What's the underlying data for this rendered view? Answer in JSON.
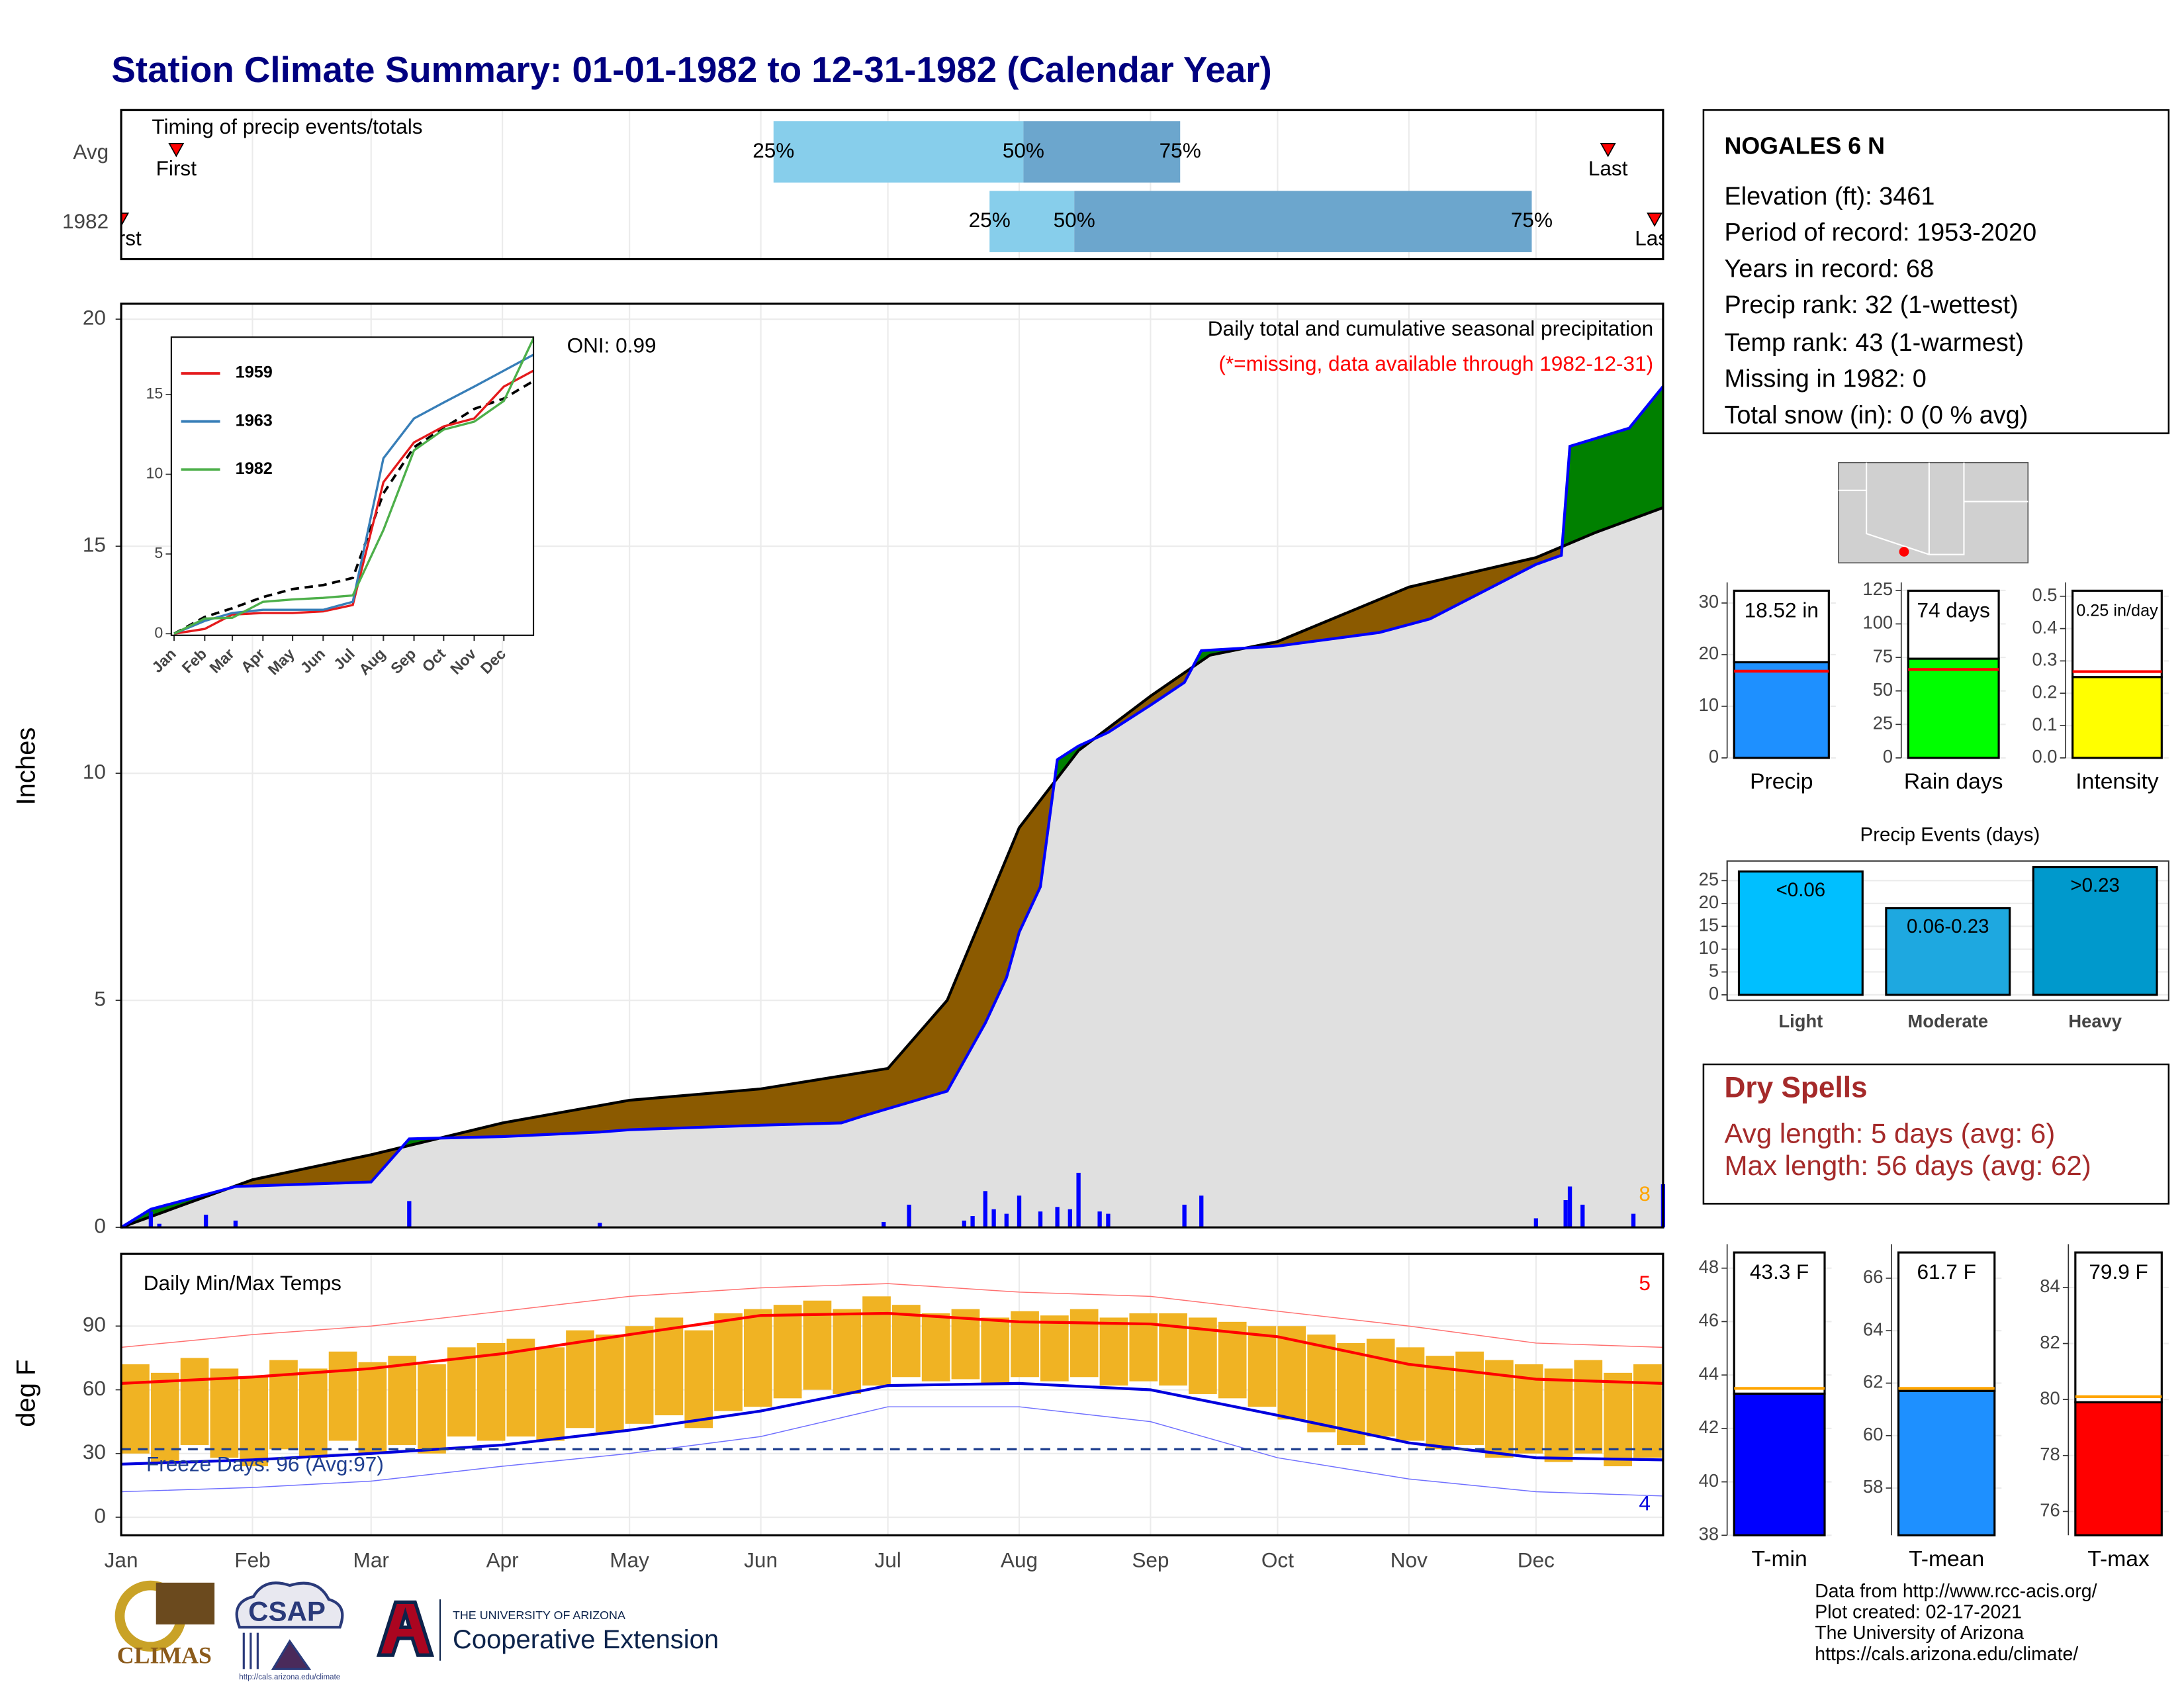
{
  "title": "Station Climate Summary: 01-01-1982 to 12-31-1982 (Calendar Year)",
  "chart_data": [
    {
      "type": "timing",
      "label": "Timing of precip events/totals",
      "categories": [
        "Avg",
        "1982"
      ],
      "first_label": "First",
      "last_label": "Last",
      "percent_labels": [
        "25%",
        "50%",
        "75%"
      ],
      "first": [
        14,
        1
      ],
      "p25": [
        155,
        206
      ],
      "p50": [
        214,
        226
      ],
      "p75": [
        251,
        334
      ],
      "last": [
        352,
        363
      ],
      "xlim": [
        1,
        365
      ],
      "colors": [
        "#87ceeb",
        "#6ca6cd"
      ],
      "marker_color": "#ff0000"
    },
    {
      "type": "cumulative",
      "title": "Daily total and cumulative seasonal precipitation",
      "subtitle": "(*=missing, data available through 1982-12-31)",
      "annotation": "ONI: 0.99",
      "ylabel": "Inches",
      "count_label": "8",
      "xlim": [
        1,
        365
      ],
      "ylim": [
        0,
        20.34
      ],
      "yticks": [
        0,
        5,
        10,
        15,
        20
      ],
      "above_color": "#008000",
      "below_color": "#8b5a00",
      "base_color": "#e0e0e0",
      "series": [
        {
          "color": "#0000ff",
          "x": [
            1,
            8,
            10,
            28,
            60,
            69,
            91,
            114,
            121,
            152,
            171,
            176,
            196,
            205,
            210,
            213,
            218,
            222,
            227,
            234,
            244,
            252,
            256,
            274,
            298,
            310,
            335,
            341,
            343,
            357,
            365
          ],
          "values": [
            0,
            0.4,
            0.45,
            0.9,
            1.0,
            1.95,
            2.0,
            2.1,
            2.15,
            2.25,
            2.3,
            2.45,
            3.0,
            4.5,
            5.5,
            6.5,
            7.5,
            10.3,
            10.6,
            10.9,
            11.5,
            12.0,
            12.7,
            12.8,
            13.1,
            13.4,
            14.6,
            14.8,
            17.2,
            17.6,
            18.52
          ]
        },
        {
          "color": "#000000",
          "x": [
            1,
            32,
            60,
            91,
            121,
            152,
            182,
            196,
            213,
            227,
            244,
            258,
            274,
            305,
            335,
            349,
            365
          ],
          "values": [
            0,
            1.05,
            1.6,
            2.3,
            2.8,
            3.05,
            3.5,
            5.0,
            8.8,
            10.5,
            11.7,
            12.6,
            12.9,
            14.1,
            14.75,
            15.3,
            15.85
          ]
        }
      ],
      "daily": {
        "color": "#0000ff",
        "x": [
          8,
          10,
          21,
          28,
          69,
          114,
          181,
          187,
          200,
          202,
          205,
          207,
          210,
          213,
          218,
          222,
          225,
          227,
          232,
          234,
          252,
          256,
          335,
          342,
          343,
          346,
          358,
          365
        ],
        "values": [
          0.35,
          0.08,
          0.28,
          0.15,
          0.58,
          0.1,
          0.12,
          0.5,
          0.15,
          0.25,
          0.8,
          0.4,
          0.3,
          0.7,
          0.35,
          0.45,
          0.4,
          1.2,
          0.35,
          0.3,
          0.5,
          0.7,
          0.2,
          0.6,
          0.9,
          0.5,
          0.3,
          0.95
        ]
      }
    },
    {
      "type": "line",
      "xlim": [
        1,
        365
      ],
      "ylim": [
        -0.1,
        18.6
      ],
      "yticks": [
        0,
        5,
        10,
        15
      ],
      "xticks": [
        {
          "value": 1,
          "label": "Jan"
        },
        {
          "value": 32,
          "label": "Feb"
        },
        {
          "value": 60,
          "label": "Mar"
        },
        {
          "value": 91,
          "label": "Apr"
        },
        {
          "value": 121,
          "label": "May"
        },
        {
          "value": 152,
          "label": "Jun"
        },
        {
          "value": 182,
          "label": "Jul"
        },
        {
          "value": 213,
          "label": "Aug"
        },
        {
          "value": 244,
          "label": "Sep"
        },
        {
          "value": 274,
          "label": "Oct"
        },
        {
          "value": 305,
          "label": "Nov"
        },
        {
          "value": 335,
          "label": "Dec"
        }
      ],
      "x": [
        1,
        32,
        60,
        91,
        121,
        152,
        182,
        213,
        244,
        274,
        305,
        335,
        365
      ],
      "series": [
        {
          "name": "1959",
          "color": "#e41a1c",
          "values": [
            0,
            0.3,
            1.2,
            1.3,
            1.3,
            1.4,
            1.8,
            9.5,
            12,
            13,
            13.5,
            15.5,
            16.5
          ]
        },
        {
          "name": "1963",
          "color": "#377eb8",
          "values": [
            0,
            0.8,
            1.3,
            1.5,
            1.5,
            1.5,
            2.0,
            11,
            13.5,
            14.5,
            15.5,
            16.5,
            17.5
          ]
        },
        {
          "name": "1982",
          "color": "#4daf4a",
          "values": [
            0,
            0.95,
            1.0,
            2.0,
            2.15,
            2.25,
            2.4,
            6.5,
            11.5,
            12.8,
            13.3,
            14.6,
            18.52
          ]
        }
      ],
      "average": {
        "color": "#000000",
        "values": [
          0,
          1.05,
          1.6,
          2.3,
          2.8,
          3.05,
          3.5,
          8.8,
          11.7,
          12.9,
          14.1,
          14.75,
          15.85
        ]
      }
    },
    {
      "type": "temperature",
      "title": "Daily Min/Max Temps",
      "ylabel": "deg F",
      "freeze_label": "Freeze Days: 96 (Avg:97)",
      "freeze_line": 32,
      "freeze_color": "#1f3f8f",
      "max_count_label": "5",
      "min_count_label": "4",
      "xlim": [
        1,
        365
      ],
      "ylim": [
        -8.5,
        124
      ],
      "yticks": [
        0,
        30,
        60,
        90
      ],
      "xticks": [
        {
          "value": 1,
          "label": "Jan"
        },
        {
          "value": 32,
          "label": "Feb"
        },
        {
          "value": 60,
          "label": "Mar"
        },
        {
          "value": 91,
          "label": "Apr"
        },
        {
          "value": 121,
          "label": "May"
        },
        {
          "value": 152,
          "label": "Jun"
        },
        {
          "value": 182,
          "label": "Jul"
        },
        {
          "value": 213,
          "label": "Aug"
        },
        {
          "value": 244,
          "label": "Sep"
        },
        {
          "value": 274,
          "label": "Oct"
        },
        {
          "value": 305,
          "label": "Nov"
        },
        {
          "value": 335,
          "label": "Dec"
        }
      ],
      "observed": {
        "color": "#f0b323",
        "x": [
          1,
          8,
          15,
          22,
          29,
          36,
          43,
          50,
          57,
          64,
          71,
          78,
          85,
          92,
          99,
          106,
          113,
          120,
          127,
          134,
          141,
          148,
          155,
          162,
          169,
          176,
          183,
          190,
          197,
          204,
          211,
          218,
          225,
          232,
          239,
          246,
          253,
          260,
          267,
          274,
          281,
          288,
          295,
          302,
          309,
          316,
          323,
          330,
          337,
          344,
          351,
          358
        ],
        "max": [
          72,
          68,
          75,
          70,
          66,
          74,
          70,
          78,
          73,
          76,
          72,
          80,
          82,
          84,
          80,
          88,
          86,
          90,
          94,
          88,
          96,
          98,
          100,
          102,
          98,
          104,
          100,
          96,
          98,
          94,
          97,
          95,
          98,
          94,
          96,
          96,
          94,
          92,
          90,
          90,
          86,
          82,
          84,
          80,
          76,
          78,
          74,
          72,
          70,
          74,
          68,
          72
        ],
        "min": [
          30,
          26,
          34,
          28,
          24,
          32,
          28,
          36,
          30,
          34,
          30,
          38,
          36,
          38,
          36,
          42,
          40,
          44,
          48,
          42,
          50,
          52,
          56,
          60,
          58,
          62,
          66,
          64,
          65,
          63,
          66,
          64,
          66,
          62,
          64,
          62,
          58,
          56,
          52,
          46,
          40,
          34,
          38,
          36,
          32,
          34,
          28,
          30,
          26,
          30,
          24,
          28
        ]
      },
      "x": [
        1,
        32,
        60,
        91,
        121,
        152,
        182,
        213,
        244,
        274,
        305,
        335,
        365
      ],
      "series": [
        {
          "color": "#ff0000",
          "width": 2,
          "values": [
            63,
            66,
            70,
            77,
            86,
            95,
            96,
            92,
            91,
            85,
            72,
            65,
            63
          ]
        },
        {
          "color": "#0000dd",
          "width": 2,
          "values": [
            25,
            27,
            30,
            34,
            41,
            50,
            62,
            63,
            60,
            48,
            35,
            28,
            27
          ]
        },
        {
          "color": "#ff7070",
          "width": 0.7,
          "values": [
            80,
            86,
            90,
            97,
            104,
            108,
            110,
            106,
            104,
            97,
            90,
            82,
            80
          ]
        },
        {
          "color": "#7070ff",
          "width": 0.7,
          "values": [
            12,
            14,
            17,
            24,
            30,
            38,
            52,
            52,
            45,
            28,
            18,
            12,
            10
          ]
        }
      ]
    },
    {
      "type": "summary_bar",
      "categories": [
        "Precip"
      ],
      "values": [
        18.52
      ],
      "value_labels": [
        "18.52 in"
      ],
      "average": 16.8,
      "average_color": "#ff0000",
      "color": "#1e90ff",
      "ylim": [
        0,
        34
      ],
      "yticks": [
        0,
        10,
        20,
        30
      ]
    },
    {
      "type": "summary_bar",
      "categories": [
        "Rain days"
      ],
      "values": [
        74
      ],
      "value_labels": [
        "74 days"
      ],
      "average": 66,
      "average_color": "#ff0000",
      "color": "#00ff00",
      "ylim": [
        0,
        131
      ],
      "yticks": [
        0,
        25,
        50,
        75,
        100,
        125
      ]
    },
    {
      "type": "summary_bar",
      "categories": [
        "Intensity"
      ],
      "values": [
        0.25
      ],
      "value_labels": [
        "0.25 in/day"
      ],
      "average": 0.267,
      "average_color": "#ff0000",
      "color": "#ffff00",
      "ylim": [
        0,
        0.543
      ],
      "yticks": [
        {
          "value": 0,
          "label": "0.0"
        },
        0.1,
        0.2,
        0.3,
        0.4,
        0.5
      ]
    },
    {
      "type": "bar",
      "title": "Precip Events (days)",
      "categories": [
        "Light",
        "Moderate",
        "Heavy"
      ],
      "values": [
        27,
        19,
        28
      ],
      "value_labels": [
        "<0.06",
        "0.06-0.23",
        ">0.23"
      ],
      "colors": [
        "#00bfff",
        "#1ea8e0",
        "#0099cc"
      ],
      "ylim": [
        -1.2,
        29.3
      ],
      "yticks": [
        0,
        5,
        10,
        15,
        20,
        25
      ]
    },
    {
      "type": "summary_bar",
      "categories": [
        "T-min"
      ],
      "values": [
        43.3
      ],
      "value_labels": [
        "43.3 F"
      ],
      "average": 43.5,
      "average_color": "#ffa500",
      "color": "#0000ff",
      "ylim": [
        38,
        48.9
      ],
      "yticks": [
        38,
        40,
        42,
        44,
        46,
        48
      ]
    },
    {
      "type": "summary_bar",
      "categories": [
        "T-mean"
      ],
      "values": [
        61.7
      ],
      "value_labels": [
        "61.7 F"
      ],
      "average": 61.8,
      "average_color": "#ffa500",
      "color": "#1e90ff",
      "ylim": [
        56.2,
        67.3
      ],
      "yticks": [
        58,
        60,
        62,
        64,
        66
      ]
    },
    {
      "type": "summary_bar",
      "categories": [
        "T-max"
      ],
      "values": [
        79.9
      ],
      "value_labels": [
        "79.9 F"
      ],
      "average": 80.1,
      "average_color": "#ffa500",
      "color": "#ff0000",
      "ylim": [
        75.15,
        85.55
      ],
      "yticks": [
        76,
        78,
        80,
        82,
        84
      ]
    }
  ],
  "station": {
    "name": "NOGALES 6 N",
    "details": [
      "Elevation (ft): 3461",
      "Period of record: 1953-2020",
      "Years in record: 68",
      "Precip rank: 32 (1-wettest)",
      "Temp rank: 43 (1-warmest)",
      "Missing in 1982: 0",
      "Total snow (in): 0 (0 % avg)"
    ]
  },
  "dry_spells": {
    "title": "Dry Spells",
    "lines": [
      "Avg length: 5 days (avg: 6)",
      "Max length: 56 days (avg: 62)"
    ]
  },
  "footer": {
    "lines": [
      "Data from http://www.rcc-acis.org/",
      "Plot created: 02-17-2021",
      "The University of Arizona",
      "https://cals.arizona.edu/climate/"
    ]
  },
  "logos": {
    "climas": "CLIMAS",
    "csap": "CSAP",
    "csap_url": "http://cals.arizona.edu/climate",
    "ua_header": "THE UNIVERSITY OF ARIZONA",
    "ua_name": "Cooperative Extension"
  }
}
